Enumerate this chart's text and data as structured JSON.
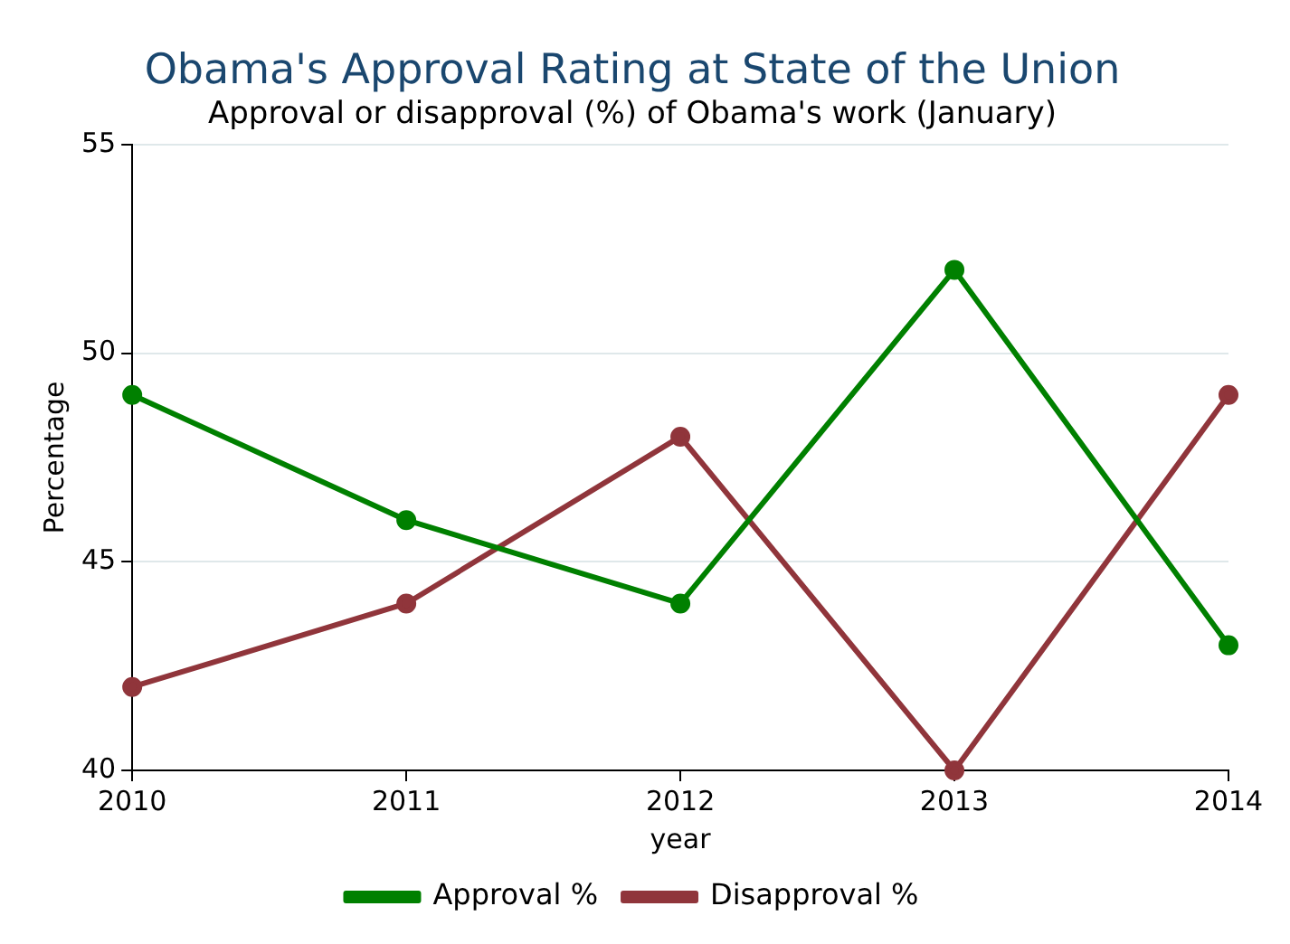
{
  "chart_data": {
    "type": "line",
    "title": "Obama's Approval Rating at State of the Union",
    "subtitle": "Approval or disapproval (%) of Obama's work (January)",
    "xlabel": "year",
    "ylabel": "Percentage",
    "x": [
      2010,
      2011,
      2012,
      2013,
      2014
    ],
    "series": [
      {
        "name": "Approval %",
        "color": "#008000",
        "values": [
          49,
          46,
          44,
          52,
          43
        ]
      },
      {
        "name": "Disapproval %",
        "color": "#90353b",
        "values": [
          42,
          44,
          48,
          40,
          49
        ]
      }
    ],
    "xlim": [
      2010,
      2014
    ],
    "xticks": [
      2010,
      2011,
      2012,
      2013,
      2014
    ],
    "ylim": [
      40,
      55
    ],
    "yticks": [
      40,
      45,
      50,
      55
    ],
    "grid": "y",
    "legend": "bottom",
    "marker": "circle",
    "line_style": "solid"
  }
}
